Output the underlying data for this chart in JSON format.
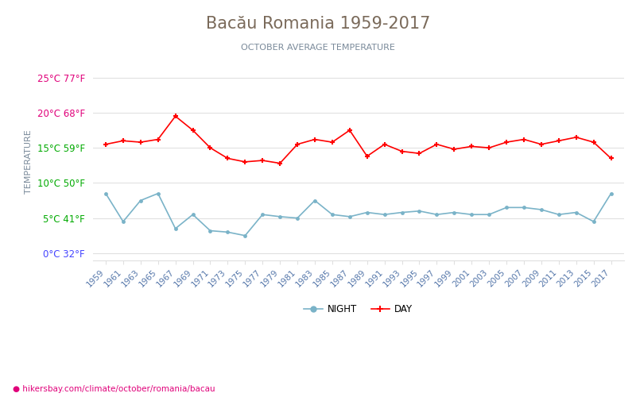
{
  "title": "Bacău Romania 1959-2017",
  "subtitle": "OCTOBER AVERAGE TEMPERATURE",
  "ylabel": "TEMPERATURE",
  "footer": "● hikersbay.com/climate/october/romania/bacau",
  "years": [
    1959,
    1961,
    1963,
    1965,
    1967,
    1969,
    1971,
    1973,
    1975,
    1977,
    1979,
    1981,
    1983,
    1985,
    1987,
    1989,
    1991,
    1993,
    1995,
    1997,
    1999,
    2001,
    2003,
    2005,
    2007,
    2009,
    2011,
    2013,
    2015,
    2017
  ],
  "day_temps": [
    15.5,
    16.0,
    15.8,
    16.2,
    19.5,
    17.5,
    15.0,
    13.5,
    13.0,
    13.2,
    12.8,
    15.5,
    16.2,
    15.8,
    17.5,
    13.8,
    15.5,
    14.5,
    14.2,
    15.5,
    14.8,
    15.2,
    15.0,
    15.8,
    16.2,
    15.5,
    16.0,
    16.5,
    15.8,
    13.5
  ],
  "night_temps": [
    8.5,
    4.5,
    7.5,
    8.5,
    3.5,
    5.5,
    3.2,
    3.0,
    2.5,
    5.5,
    5.2,
    5.0,
    7.5,
    5.5,
    5.2,
    5.8,
    5.5,
    5.8,
    6.0,
    5.5,
    5.8,
    5.5,
    5.5,
    6.5,
    6.5,
    6.2,
    5.5,
    5.8,
    4.5,
    8.5
  ],
  "day_color": "#ff0000",
  "night_color": "#7ab3c8",
  "title_color": "#7a6a5a",
  "subtitle_color": "#7a8a9a",
  "ylabel_color": "#7a8a9a",
  "grid_color": "#e0e0e0",
  "background_color": "#ffffff",
  "ytick_labels": [
    "25°C 77°F",
    "20°C 68°F",
    "15°C 59°F",
    "10°C 50°F",
    "5°C 41°F",
    "0°C 32°F"
  ],
  "ytick_values": [
    25,
    20,
    15,
    10,
    5,
    0
  ],
  "ytick_colors": [
    "#e0007a",
    "#e0007a",
    "#00aa00",
    "#00aa00",
    "#00aa00",
    "#4444ff"
  ],
  "ylim": [
    -1,
    27
  ],
  "footer_color": "#e0007a"
}
